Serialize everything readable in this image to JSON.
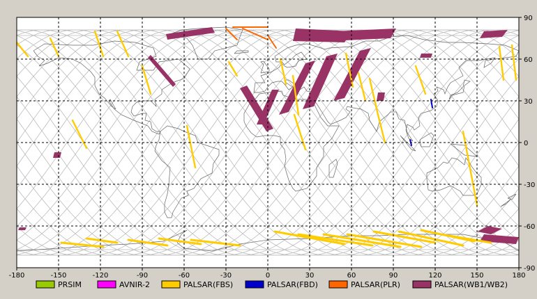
{
  "chart_data": {
    "type": "map",
    "projection": "equirectangular",
    "xlim": [
      -180,
      180
    ],
    "ylim": [
      -90,
      90
    ],
    "x_ticks": [
      "-180",
      "-150",
      "-120",
      "-90",
      "-60",
      "-30",
      "0",
      "30",
      "60",
      "90",
      "120",
      "150",
      "180"
    ],
    "y_ticks": [
      "90",
      "60",
      "30",
      "0",
      "-30",
      "-60",
      "-90"
    ],
    "grid": true,
    "grid_step_deg": 30,
    "legend_placement": "bottom",
    "legend": [
      {
        "label": "PRSIM",
        "color": "#99cc00"
      },
      {
        "label": "AVNIR-2",
        "color": "#ff00ff"
      },
      {
        "label": "PALSAR(FBS)",
        "color": "#ffcc00"
      },
      {
        "label": "PALSAR(FBD)",
        "color": "#0000cc"
      },
      {
        "label": "PALSAR(PLR)",
        "color": "#ff6600"
      },
      {
        "label": "PALSAR(WB1/WB2)",
        "color": "#993366"
      }
    ],
    "colors": {
      "background": "#d4d0c8",
      "plot_area": "#ffffff",
      "coastline": "#666666",
      "orbit_track": "#bbbbbb",
      "grid": "#000000"
    },
    "observations": {
      "wb_swaths": [
        {
          "lon": [
            -86,
            -84,
            -66,
            -68
          ],
          "lat": [
            61,
            63,
            42,
            40
          ]
        },
        {
          "lon": [
            -20,
            -15,
            4,
            -1
          ],
          "lat": [
            39,
            41,
            10,
            8
          ]
        },
        {
          "lon": [
            3,
            8,
            -3,
            -8
          ],
          "lat": [
            38,
            38,
            13,
            13
          ]
        },
        {
          "lon": [
            27,
            34,
            15,
            8
          ],
          "lat": [
            57,
            59,
            22,
            20
          ]
        },
        {
          "lon": [
            42,
            50,
            33,
            25
          ],
          "lat": [
            62,
            64,
            26,
            24
          ]
        },
        {
          "lon": [
            66,
            74,
            55,
            47
          ],
          "lat": [
            66,
            68,
            32,
            30
          ]
        },
        {
          "lon": [
            -73,
            -40,
            -38,
            -72
          ],
          "lat": [
            78,
            83,
            79,
            74
          ]
        },
        {
          "lon": [
            20,
            60,
            55,
            18
          ],
          "lat": [
            82,
            80,
            72,
            73
          ]
        },
        {
          "lon": [
            48,
            92,
            88,
            44
          ],
          "lat": [
            80,
            82,
            75,
            73
          ]
        },
        {
          "lon": [
            155,
            172,
            168,
            152
          ],
          "lat": [
            80,
            81,
            76,
            75
          ]
        },
        {
          "lon": [
            158,
            168,
            160,
            150
          ],
          "lat": [
            -60,
            -62,
            -66,
            -64
          ]
        },
        {
          "lon": [
            155,
            180,
            178,
            152
          ],
          "lat": [
            -66,
            -68,
            -73,
            -71
          ]
        },
        {
          "lon": [
            -178,
            -173,
            -174,
            -179
          ],
          "lat": [
            -61,
            -61,
            -63,
            -63
          ]
        },
        {
          "lon": [
            -153,
            -148,
            -149,
            -154
          ],
          "lat": [
            -7,
            -7,
            -11,
            -11
          ]
        },
        {
          "lon": [
            110,
            118,
            117,
            109
          ],
          "lat": [
            64,
            64,
            61,
            61
          ]
        },
        {
          "lon": [
            79,
            84,
            83,
            78
          ],
          "lat": [
            36,
            36,
            30,
            30
          ]
        }
      ],
      "fbs_lines": [
        {
          "lon": [
            -156,
            -150
          ],
          "lat": [
            75,
            62
          ]
        },
        {
          "lon": [
            -180,
            -172
          ],
          "lat": [
            72,
            62
          ]
        },
        {
          "lon": [
            -124,
            -118
          ],
          "lat": [
            80,
            62
          ]
        },
        {
          "lon": [
            -108,
            -100
          ],
          "lat": [
            80,
            62
          ]
        },
        {
          "lon": [
            -90,
            -84
          ],
          "lat": [
            55,
            35
          ]
        },
        {
          "lon": [
            -58,
            -52
          ],
          "lat": [
            12,
            -18
          ]
        },
        {
          "lon": [
            -28,
            -22
          ],
          "lat": [
            58,
            48
          ]
        },
        {
          "lon": [
            9,
            13
          ],
          "lat": [
            60,
            42
          ]
        },
        {
          "lon": [
            18,
            22
          ],
          "lat": [
            48,
            20
          ]
        },
        {
          "lon": [
            19,
            27
          ],
          "lat": [
            20,
            -5
          ]
        },
        {
          "lon": [
            56,
            61
          ],
          "lat": [
            64,
            40
          ]
        },
        {
          "lon": [
            65,
            70
          ],
          "lat": [
            50,
            30
          ]
        },
        {
          "lon": [
            73,
            79
          ],
          "lat": [
            46,
            20
          ]
        },
        {
          "lon": [
            79,
            84
          ],
          "lat": [
            20,
            0
          ]
        },
        {
          "lon": [
            106,
            113
          ],
          "lat": [
            55,
            35
          ]
        },
        {
          "lon": [
            140,
            150
          ],
          "lat": [
            8,
            -45
          ]
        },
        {
          "lon": [
            166,
            169
          ],
          "lat": [
            69,
            45
          ]
        },
        {
          "lon": [
            175,
            178
          ],
          "lat": [
            70,
            45
          ]
        },
        {
          "lon": [
            -140,
            -130
          ],
          "lat": [
            16,
            -4
          ]
        }
      ],
      "fbs_antarctic": [
        {
          "lon": [
            -148,
            -118
          ],
          "lat": [
            -72,
            -75
          ]
        },
        {
          "lon": [
            -130,
            -108
          ],
          "lat": [
            -69,
            -72
          ]
        },
        {
          "lon": [
            -100,
            -72
          ],
          "lat": [
            -70,
            -74
          ]
        },
        {
          "lon": [
            -78,
            -48
          ],
          "lat": [
            -69,
            -73
          ]
        },
        {
          "lon": [
            -55,
            -20
          ],
          "lat": [
            -70,
            -74
          ]
        },
        {
          "lon": [
            5,
            55
          ],
          "lat": [
            -64,
            -73
          ]
        },
        {
          "lon": [
            22,
            75
          ],
          "lat": [
            -66,
            -74
          ]
        },
        {
          "lon": [
            40,
            95
          ],
          "lat": [
            -66,
            -75
          ]
        },
        {
          "lon": [
            57,
            110
          ],
          "lat": [
            -66,
            -75
          ]
        },
        {
          "lon": [
            76,
            120
          ],
          "lat": [
            -64,
            -72
          ]
        },
        {
          "lon": [
            94,
            140
          ],
          "lat": [
            -64,
            -74
          ]
        },
        {
          "lon": [
            110,
            148
          ],
          "lat": [
            -63,
            -71
          ]
        },
        {
          "lon": [
            124,
            160
          ],
          "lat": [
            -66,
            -72
          ]
        }
      ],
      "plr_lines": [
        {
          "lon": [
            -25,
            0
          ],
          "lat": [
            83,
            83
          ]
        },
        {
          "lon": [
            0,
            6
          ],
          "lat": [
            77,
            68
          ]
        },
        {
          "lon": [
            -18,
            0
          ],
          "lat": [
            82,
            74
          ]
        },
        {
          "lon": [
            -30,
            -22
          ],
          "lat": [
            82,
            74
          ]
        }
      ],
      "fbd_lines": [
        {
          "lon": [
            117,
            118
          ],
          "lat": [
            31,
            25
          ]
        },
        {
          "lon": [
            102,
            103
          ],
          "lat": [
            2,
            -2
          ]
        }
      ]
    }
  }
}
